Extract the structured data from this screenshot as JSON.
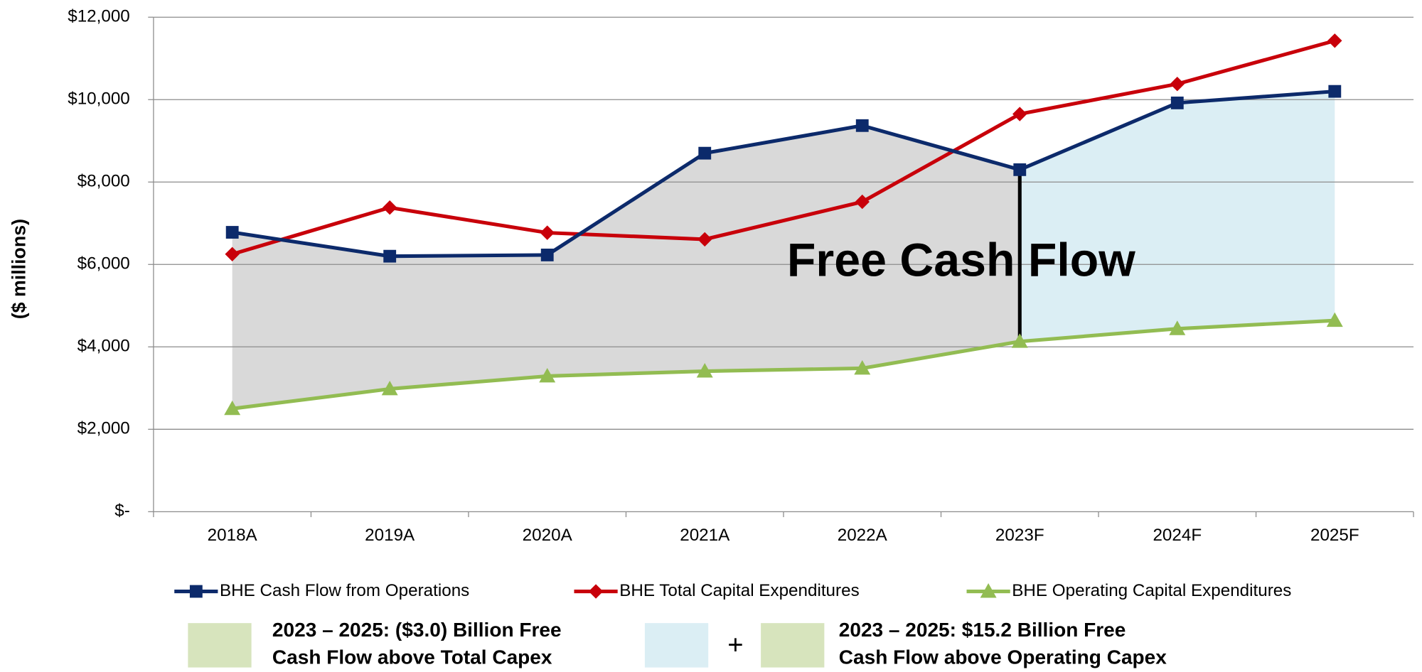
{
  "chart_data": {
    "type": "line",
    "y_label": "($ millions)",
    "categories": [
      "2018A",
      "2019A",
      "2020A",
      "2021A",
      "2022A",
      "2023F",
      "2024F",
      "2025F"
    ],
    "series": [
      {
        "name": "BHE Cash Flow from Operations",
        "color": "#0c2a6b",
        "marker": "square",
        "values": [
          6780,
          6200,
          6230,
          8700,
          9370,
          8300,
          9920,
          10200
        ]
      },
      {
        "name": "BHE Total Capital Expenditures",
        "color": "#c8000a",
        "marker": "diamond",
        "values": [
          6250,
          7380,
          6770,
          6610,
          7520,
          9650,
          10380,
          11430
        ]
      },
      {
        "name": "BHE Operating Capital Expenditures",
        "color": "#92bc52",
        "marker": "triangle",
        "values": [
          2500,
          2980,
          3290,
          3410,
          3480,
          4130,
          4440,
          4640
        ]
      }
    ],
    "ylim": [
      0,
      12000
    ],
    "yticks": [
      {
        "value": 0,
        "label": "$-"
      },
      {
        "value": 2000,
        "label": "$2,000"
      },
      {
        "value": 4000,
        "label": "$4,000"
      },
      {
        "value": 6000,
        "label": "$6,000"
      },
      {
        "value": 8000,
        "label": "$8,000"
      },
      {
        "value": 10000,
        "label": "$10,000"
      },
      {
        "value": 12000,
        "label": "$12,000"
      }
    ],
    "grid": true,
    "legend": "bottom",
    "annotation": "Free Cash Flow",
    "notes": [
      {
        "lines": [
          "2023 – 2025: ($3.0) Billion Free",
          "Cash Flow above Total Capex"
        ],
        "color": "#d7e4bd"
      },
      {
        "lines": [
          "2023 – 2025: $15.2 Billion Free",
          "Cash Flow above Operating Capex"
        ],
        "color": "#d7e4bd"
      }
    ],
    "plus": "+",
    "plus_color": "#dbeef4"
  }
}
